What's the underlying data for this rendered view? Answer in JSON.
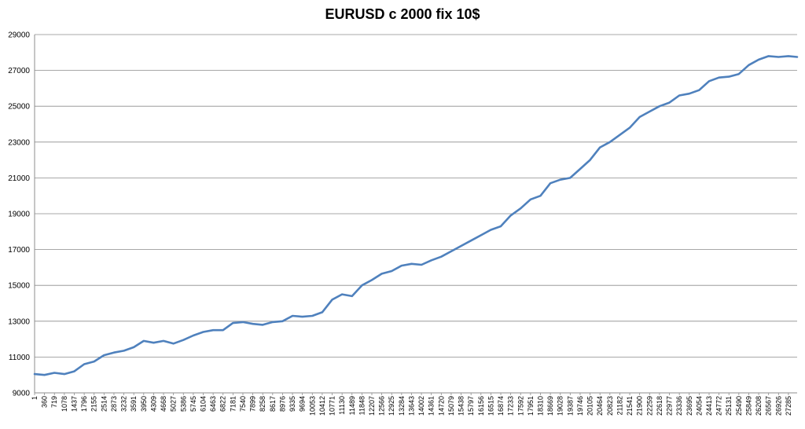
{
  "chart_data": {
    "type": "line",
    "title": "EURUSD c 2000 fix 10$",
    "xlabel": "",
    "ylabel": "",
    "ylim": [
      9000,
      29000
    ],
    "xlim": [
      1,
      27600
    ],
    "grid": true,
    "legend": "none",
    "y_ticks": [
      "9000",
      "11000",
      "13000",
      "15000",
      "17000",
      "19000",
      "21000",
      "23000",
      "25000",
      "27000",
      "29000"
    ],
    "x_ticks": [
      "1",
      "360",
      "719",
      "1078",
      "1437",
      "1796",
      "2155",
      "2514",
      "2873",
      "3232",
      "3591",
      "3950",
      "4309",
      "4668",
      "5027",
      "5386",
      "5745",
      "6104",
      "6463",
      "6822",
      "7181",
      "7540",
      "7899",
      "8258",
      "8617",
      "8976",
      "9335",
      "9694",
      "10053",
      "10412",
      "10771",
      "11130",
      "11489",
      "11848",
      "12207",
      "12566",
      "12925",
      "13284",
      "13643",
      "14002",
      "14361",
      "14720",
      "15079",
      "15438",
      "15797",
      "16156",
      "16515",
      "16874",
      "17233",
      "17592",
      "17951",
      "18310",
      "18669",
      "19028",
      "19387",
      "19746",
      "20105",
      "20464",
      "20823",
      "21182",
      "21541",
      "21900",
      "22259",
      "22618",
      "22977",
      "23336",
      "23695",
      "24054",
      "24413",
      "24772",
      "25131",
      "25490",
      "25849",
      "26208",
      "26567",
      "26926",
      "27285"
    ],
    "series": [
      {
        "color": "#4f81bd",
        "x": [
          1,
          360,
          719,
          1078,
          1437,
          1796,
          2155,
          2514,
          2873,
          3232,
          3591,
          3950,
          4309,
          4668,
          5027,
          5386,
          5745,
          6104,
          6463,
          6822,
          7181,
          7540,
          7899,
          8258,
          8617,
          8976,
          9335,
          9694,
          10053,
          10412,
          10771,
          11130,
          11489,
          11848,
          12207,
          12566,
          12925,
          13284,
          13643,
          14002,
          14361,
          14720,
          15079,
          15438,
          15797,
          16156,
          16515,
          16874,
          17233,
          17592,
          17951,
          18310,
          18669,
          19028,
          19387,
          19746,
          20105,
          20464,
          20823,
          21182,
          21541,
          21900,
          22259,
          22618,
          22977,
          23336,
          23695,
          24054,
          24413,
          24772,
          25131,
          25490,
          25849,
          26208,
          26567,
          26926,
          27285,
          27600
        ],
        "values": [
          10050,
          10000,
          10120,
          10050,
          10200,
          10600,
          10750,
          11100,
          11250,
          11350,
          11550,
          11900,
          11800,
          11900,
          11750,
          11950,
          12200,
          12400,
          12500,
          12500,
          12900,
          12950,
          12850,
          12800,
          12950,
          13000,
          13300,
          13250,
          13300,
          13500,
          14200,
          14500,
          14400,
          15000,
          15300,
          15650,
          15800,
          16100,
          16200,
          16150,
          16400,
          16600,
          16900,
          17200,
          17500,
          17800,
          18100,
          18300,
          18900,
          19300,
          19800,
          20000,
          20700,
          20900,
          21000,
          21500,
          22000,
          22700,
          23000,
          23400,
          23800,
          24400,
          24700,
          25000,
          25200,
          25600,
          25700,
          25900,
          26400,
          26600,
          26650,
          26800,
          27300,
          27600,
          27800,
          27750,
          27800,
          27750
        ]
      }
    ]
  }
}
